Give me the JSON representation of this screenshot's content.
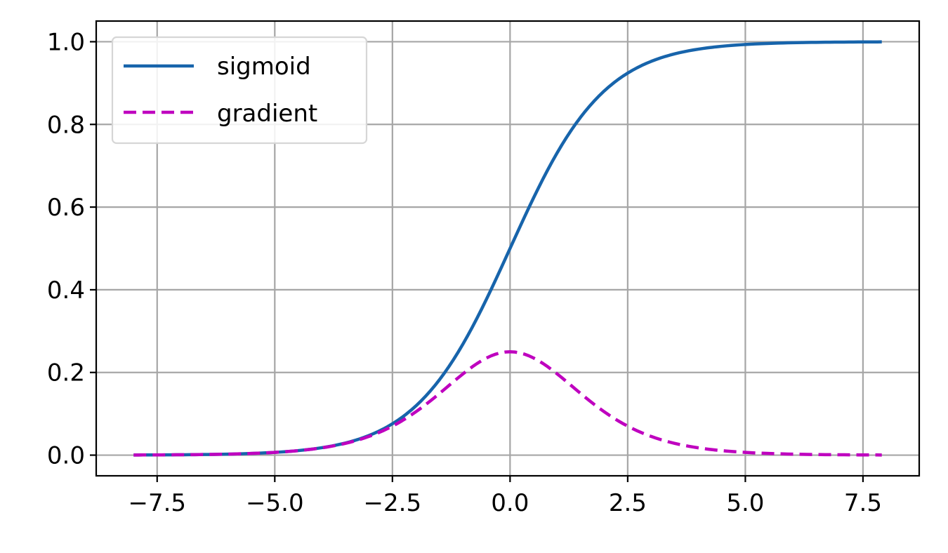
{
  "chart_data": {
    "type": "line",
    "x_start": -8.0,
    "x_end": 7.9,
    "x_step": 0.1,
    "xlim": [
      -8.795,
      8.695
    ],
    "ylim": [
      -0.05,
      1.05
    ],
    "xticks": [
      -7.5,
      -5.0,
      -2.5,
      0.0,
      2.5,
      5.0,
      7.5
    ],
    "xtick_labels": [
      "−7.5",
      "−5.0",
      "−2.5",
      "0.0",
      "2.5",
      "5.0",
      "7.5"
    ],
    "yticks": [
      0.0,
      0.2,
      0.4,
      0.6,
      0.8,
      1.0
    ],
    "ytick_labels": [
      "0.0",
      "0.2",
      "0.4",
      "0.6",
      "0.8",
      "1.0"
    ],
    "grid": true,
    "legend_position": "top-left",
    "series": [
      {
        "name": "sigmoid",
        "function": "1 / (1 + exp(-x))",
        "color": "#1764ab",
        "dash": "solid"
      },
      {
        "name": "gradient",
        "function": "sigmoid(x) * (1 - sigmoid(x))",
        "color": "#bf00bf",
        "dash": "dashed"
      }
    ]
  }
}
